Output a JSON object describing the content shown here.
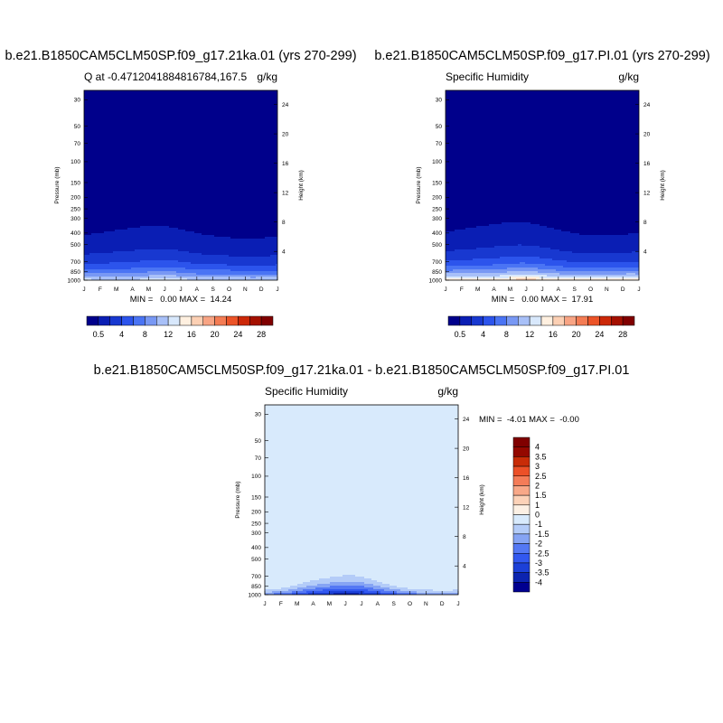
{
  "chart_data": [
    {
      "type": "heatmap",
      "title": "b.e21.B1850CAM5CLM50SP.f09_g17.21ka.01 (yrs 270-299)",
      "subtitle_left": "Q at -0.4712041884816784,167.5",
      "subtitle_right": "g/kg",
      "ylabel": "Pressure (mb)",
      "ylabel_right": "Height (km)",
      "x_ticks": [
        "J",
        "F",
        "M",
        "A",
        "M",
        "J",
        "J",
        "A",
        "S",
        "O",
        "N",
        "D",
        "J"
      ],
      "y_ticks": [
        "30",
        "50",
        "70",
        "100",
        "150",
        "200",
        "250",
        "300",
        "400",
        "500",
        "700",
        "850",
        "1000"
      ],
      "y_ticks_right": [
        "24",
        "20",
        "16",
        "12",
        "8",
        "4"
      ],
      "y_scale": "log",
      "ylim": [
        1000,
        25
      ],
      "min_max_text": "MIN =   0.00 MAX =  14.24",
      "field_max": 14.24,
      "peak_months": [
        1,
        6,
        10,
        12
      ],
      "peak_values": [
        13.5,
        14.24,
        13.5,
        13.0
      ],
      "colorbar": {
        "orientation": "horizontal",
        "levels": [
          0.5,
          2,
          4,
          6,
          8,
          10,
          12,
          14,
          16,
          18,
          20,
          22,
          24,
          26,
          28
        ],
        "labels": [
          "0.5",
          "4",
          "8",
          "12",
          "16",
          "20",
          "24",
          "28"
        ]
      }
    },
    {
      "type": "heatmap",
      "title": "b.e21.B1850CAM5CLM50SP.f09_g17.PI.01 (yrs 270-299)",
      "subtitle_left": "Specific Humidity",
      "subtitle_right": "g/kg",
      "ylabel": "Pressure (mb)",
      "ylabel_right": "Height (km)",
      "x_ticks": [
        "J",
        "F",
        "M",
        "A",
        "M",
        "J",
        "J",
        "A",
        "S",
        "O",
        "N",
        "D",
        "J"
      ],
      "y_ticks": [
        "30",
        "50",
        "70",
        "100",
        "150",
        "200",
        "250",
        "300",
        "400",
        "500",
        "700",
        "850",
        "1000"
      ],
      "y_ticks_right": [
        "24",
        "20",
        "16",
        "12",
        "8",
        "4"
      ],
      "y_scale": "log",
      "ylim": [
        1000,
        25
      ],
      "min_max_text": "MIN =   0.00 MAX =  17.91",
      "field_max": 17.91,
      "peak_months": [
        1,
        6,
        12
      ],
      "peak_values": [
        17.0,
        17.91,
        17.0
      ],
      "colorbar": {
        "orientation": "horizontal",
        "levels": [
          0.5,
          2,
          4,
          6,
          8,
          10,
          12,
          14,
          16,
          18,
          20,
          22,
          24,
          26,
          28
        ],
        "labels": [
          "0.5",
          "4",
          "8",
          "12",
          "16",
          "20",
          "24",
          "28"
        ]
      }
    },
    {
      "type": "heatmap",
      "title": "b.e21.B1850CAM5CLM50SP.f09_g17.21ka.01 - b.e21.B1850CAM5CLM50SP.f09_g17.PI.01",
      "subtitle_left": "Specific Humidity",
      "subtitle_right": "g/kg",
      "ylabel": "Pressure (mb)",
      "ylabel_right": "Height (km)",
      "x_ticks": [
        "J",
        "F",
        "M",
        "A",
        "M",
        "J",
        "J",
        "A",
        "S",
        "O",
        "N",
        "D",
        "J"
      ],
      "y_ticks": [
        "30",
        "50",
        "70",
        "100",
        "150",
        "200",
        "250",
        "300",
        "400",
        "500",
        "700",
        "850",
        "1000"
      ],
      "y_ticks_right": [
        "24",
        "20",
        "16",
        "12",
        "8",
        "4"
      ],
      "y_scale": "log",
      "ylim": [
        1000,
        25
      ],
      "min_max_text": "MIN =  -4.01 MAX =  -0.00",
      "field_min": -4.01,
      "field_max": -0.0,
      "colorbar": {
        "orientation": "vertical",
        "levels": [
          -4,
          -3.5,
          -3,
          -2.5,
          -2,
          -1.5,
          -1,
          0,
          1,
          1.5,
          2,
          2.5,
          3,
          3.5,
          4
        ],
        "labels": [
          "4",
          "3.5",
          "3",
          "2.5",
          "2",
          "1.5",
          "1",
          "0",
          "-1",
          "-1.5",
          "-2",
          "-2.5",
          "-3",
          "-3.5",
          "-4"
        ]
      }
    }
  ],
  "colors": {
    "pos_levels": [
      "#00008b",
      "#0a1eb4",
      "#1838d0",
      "#2c54ec",
      "#4a74f4",
      "#7898f4",
      "#a8c0f8",
      "#d8e8fc",
      "#fff0e0",
      "#fcd0b4",
      "#f8a484",
      "#f47c54",
      "#ec5428",
      "#cc2808",
      "#a41000",
      "#800000"
    ],
    "diff_levels": [
      "#000090",
      "#0c24b0",
      "#1c40d8",
      "#3258f0",
      "#5478f4",
      "#86a4f4",
      "#b4ccf8",
      "#d8eafc",
      "#fcf0e4",
      "#fcd2b8",
      "#f8a888",
      "#f47c58",
      "#ec5028",
      "#c82c08",
      "#940800",
      "#800000"
    ]
  }
}
